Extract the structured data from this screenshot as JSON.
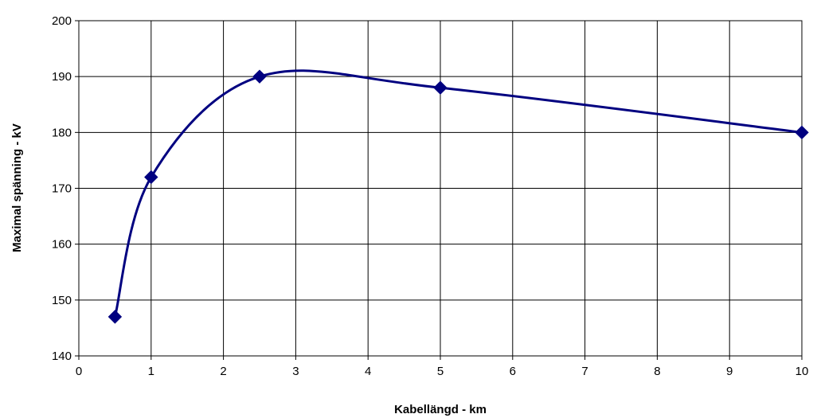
{
  "chart_data": {
    "type": "line",
    "title": "",
    "xlabel": "Kabellängd - km",
    "ylabel": "Maximal spänning - kV",
    "xlim": [
      0,
      10
    ],
    "ylim": [
      140,
      200
    ],
    "xticks": [
      0,
      1,
      2,
      3,
      4,
      5,
      6,
      7,
      8,
      9,
      10
    ],
    "yticks": [
      140,
      150,
      160,
      170,
      180,
      190,
      200
    ],
    "grid": true,
    "legend": "none",
    "smoothed": true,
    "marker": "diamond",
    "color": "#000080",
    "series": [
      {
        "x": [
          0.5,
          1,
          2.5,
          5,
          10
        ],
        "y": [
          147,
          172,
          190,
          188,
          180
        ]
      }
    ]
  }
}
